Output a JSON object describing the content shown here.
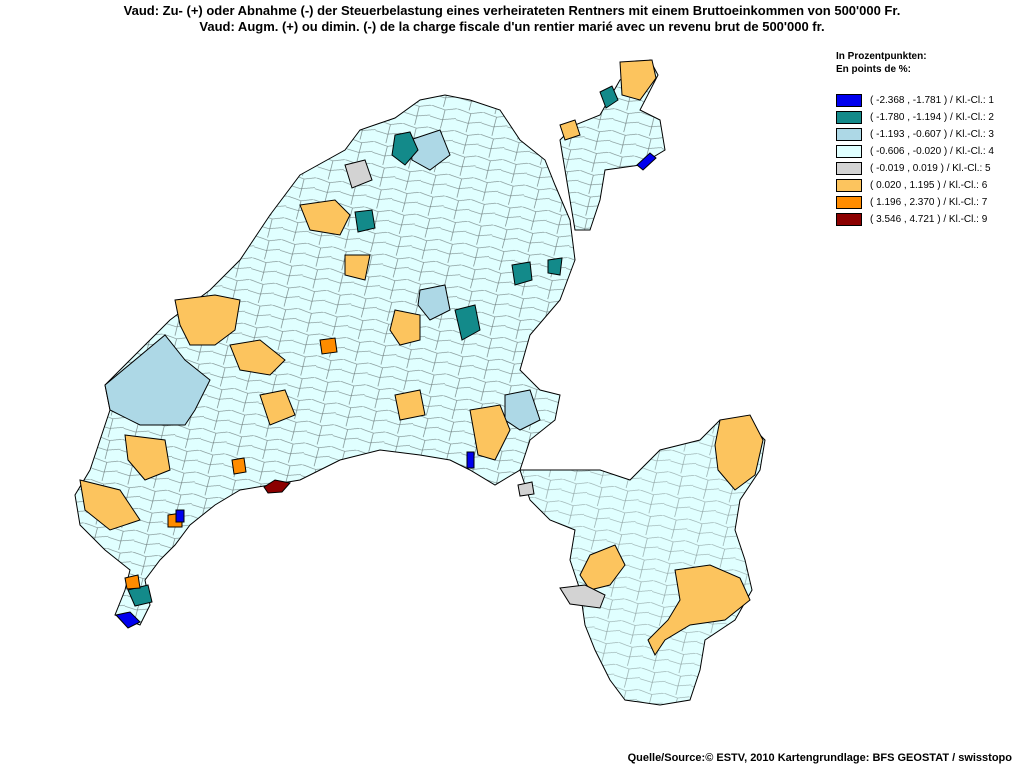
{
  "title": {
    "line1": "Vaud: Zu- (+) oder Abnahme (-) der Steuerbelastung eines verheirateten Rentners mit einem Bruttoeinkommen von 500'000 Fr.",
    "line2": "Vaud: Augm. (+) ou dimin. (-) de la charge fiscale d'un rentier marié avec un revenu brut de 500'000 fr."
  },
  "legend": {
    "heading1": "In Prozentpunkten:",
    "heading2": "En points de %:",
    "classes": [
      {
        "label": "( -2.368 , -1.781 ) / Kl.-Cl.: 1",
        "color": "#0000ee"
      },
      {
        "label": "( -1.780 , -1.194 ) / Kl.-Cl.: 2",
        "color": "#138a8a"
      },
      {
        "label": "( -1.193 , -0.607 ) / Kl.-Cl.: 3",
        "color": "#add8e6"
      },
      {
        "label": "( -0.606 , -0.020 ) / Kl.-Cl.: 4",
        "color": "#e0ffff"
      },
      {
        "label": "( -0.019 , 0.019 ) / Kl.-Cl.: 5",
        "color": "#d3d3d3"
      },
      {
        "label": "( 0.020 , 1.195 ) / Kl.-Cl.: 6",
        "color": "#fcc45e"
      },
      {
        "label": "( 1.196 , 2.370 ) / Kl.-Cl.: 7",
        "color": "#ff8c00"
      },
      {
        "label": "( 3.546 , 4.721 ) / Kl.-Cl.: 9",
        "color": "#8b0000"
      }
    ]
  },
  "source": "Quelle/Source:© ESTV, 2010 Kartengrundlage: BFS GEOSTAT / swisstopo"
}
